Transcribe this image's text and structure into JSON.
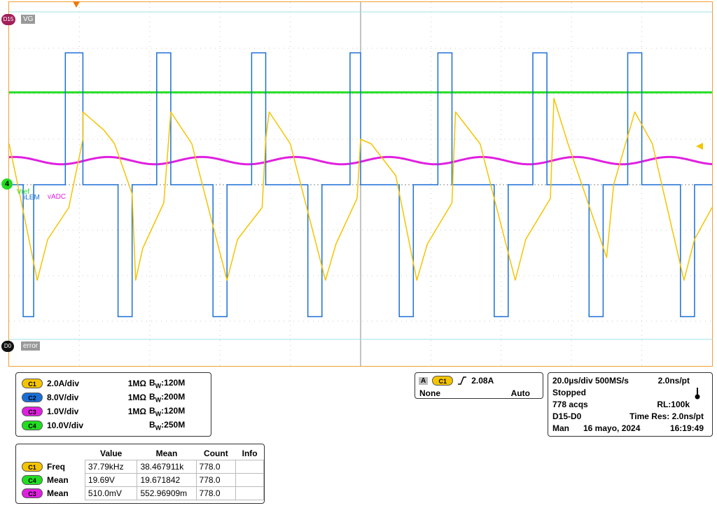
{
  "screen": {
    "labels": {
      "d15_marker": "D15",
      "d15_name": "VG",
      "d0_marker": "D0",
      "d0_name": "error",
      "ch4_marker": "4",
      "trace_label_vref": "Vref",
      "trace_label_ilem": "iLEM",
      "trace_label_vadc": "vADC"
    },
    "colors": {
      "ch1": "#f5c400",
      "ch2": "#1a6fd6",
      "ch3": "#e020e0",
      "ch4": "#22dd22",
      "grid": "#c8c8c8",
      "frame": "#f0a030",
      "digital": "#a0e0e8"
    },
    "trigger_marker_icon": "trigger-down-arrow",
    "trigger_level_icon": "trigger-level-left-arrow"
  },
  "chart_data": {
    "type": "line",
    "title": "",
    "xlabel": "",
    "ylabel": "",
    "x_units": "divisions",
    "y_units": "divisions",
    "xlim": [
      0,
      10
    ],
    "ylim": [
      -4,
      4
    ],
    "grid": true,
    "period_div": 1.33,
    "series": [
      {
        "name": "C1",
        "color": "#f5c400",
        "description_free": true,
        "points": [
          [
            0,
            0.9
          ],
          [
            0.15,
            -0.2
          ],
          [
            0.4,
            -2.1
          ],
          [
            0.55,
            -1.2
          ],
          [
            0.85,
            -0.5
          ],
          [
            1.05,
            1.0
          ],
          [
            1.05,
            1.6
          ],
          [
            1.35,
            1.2
          ],
          [
            1.5,
            0.9
          ],
          [
            1.75,
            -0.2
          ],
          [
            1.8,
            -2.1
          ],
          [
            1.9,
            -1.4
          ],
          [
            2.2,
            -0.4
          ],
          [
            2.3,
            1.6
          ],
          [
            2.6,
            0.9
          ],
          [
            3.1,
            -2.1
          ],
          [
            3.25,
            -1.2
          ],
          [
            3.6,
            -0.5
          ],
          [
            3.65,
            1.0
          ],
          [
            3.7,
            1.6
          ],
          [
            4.0,
            0.9
          ],
          [
            4.5,
            -2.1
          ],
          [
            4.65,
            -1.3
          ],
          [
            4.95,
            -0.3
          ],
          [
            5.0,
            1.0
          ],
          [
            5.15,
            0.9
          ],
          [
            5.5,
            0.2
          ],
          [
            5.8,
            -2.1
          ],
          [
            5.95,
            -1.3
          ],
          [
            6.3,
            -0.4
          ],
          [
            6.35,
            1.6
          ],
          [
            6.7,
            0.9
          ],
          [
            7.2,
            -2.1
          ],
          [
            7.35,
            -1.2
          ],
          [
            7.7,
            -0.3
          ],
          [
            7.75,
            1.9
          ],
          [
            7.95,
            0.9
          ],
          [
            8.5,
            -1.6
          ],
          [
            8.6,
            0.0
          ],
          [
            8.9,
            1.6
          ],
          [
            9.15,
            0.9
          ],
          [
            9.6,
            -2.1
          ],
          [
            9.75,
            -1.2
          ],
          [
            10.0,
            -0.5
          ]
        ]
      },
      {
        "name": "C2",
        "color": "#1a6fd6",
        "points": [
          [
            0,
            0
          ],
          [
            0.2,
            0
          ],
          [
            0.2,
            -2.9
          ],
          [
            0.35,
            -2.9
          ],
          [
            0.35,
            0
          ],
          [
            0.8,
            0
          ],
          [
            0.8,
            2.9
          ],
          [
            1.05,
            2.9
          ],
          [
            1.05,
            0
          ],
          [
            1.55,
            0
          ],
          [
            1.55,
            -2.9
          ],
          [
            1.75,
            -2.9
          ],
          [
            1.75,
            0
          ],
          [
            2.1,
            0
          ],
          [
            2.1,
            2.9
          ],
          [
            2.3,
            2.9
          ],
          [
            2.3,
            0
          ],
          [
            2.9,
            0
          ],
          [
            2.9,
            -2.9
          ],
          [
            3.1,
            -2.9
          ],
          [
            3.1,
            0
          ],
          [
            3.45,
            0
          ],
          [
            3.45,
            2.9
          ],
          [
            3.65,
            2.9
          ],
          [
            3.65,
            0
          ],
          [
            4.25,
            0
          ],
          [
            4.25,
            -2.9
          ],
          [
            4.45,
            -2.9
          ],
          [
            4.45,
            0
          ],
          [
            4.85,
            0
          ],
          [
            4.85,
            2.9
          ],
          [
            5.0,
            2.9
          ],
          [
            5.0,
            0
          ],
          [
            5.55,
            0
          ],
          [
            5.55,
            -2.9
          ],
          [
            5.75,
            -2.9
          ],
          [
            5.75,
            0
          ],
          [
            6.1,
            0
          ],
          [
            6.1,
            2.9
          ],
          [
            6.3,
            2.9
          ],
          [
            6.3,
            0
          ],
          [
            6.9,
            0
          ],
          [
            6.9,
            -2.9
          ],
          [
            7.1,
            -2.9
          ],
          [
            7.1,
            0
          ],
          [
            7.45,
            0
          ],
          [
            7.45,
            2.9
          ],
          [
            7.65,
            2.9
          ],
          [
            7.65,
            0
          ],
          [
            8.25,
            0
          ],
          [
            8.25,
            -2.9
          ],
          [
            8.45,
            -2.9
          ],
          [
            8.45,
            0
          ],
          [
            8.8,
            0
          ],
          [
            8.8,
            2.9
          ],
          [
            9.0,
            2.9
          ],
          [
            9.0,
            0
          ],
          [
            9.55,
            0
          ],
          [
            9.55,
            -2.9
          ],
          [
            9.75,
            -2.9
          ],
          [
            9.75,
            0
          ],
          [
            10,
            0
          ]
        ]
      },
      {
        "name": "C3",
        "color": "#e020e0",
        "mean_div": 0.53,
        "ripple_div": 0.08
      },
      {
        "name": "C4",
        "color": "#22dd22",
        "level_div": 2.03
      }
    ]
  },
  "channels_panel": {
    "rows": [
      {
        "badge": "C1",
        "scale": "2.0A/div",
        "impedance": "1MΩ",
        "bw_prefix": "B",
        "bw_sub": "W",
        "bw": ":120M",
        "color": "#f5c400"
      },
      {
        "badge": "C2",
        "scale": "8.0V/div",
        "impedance": "1MΩ",
        "bw_prefix": "B",
        "bw_sub": "W",
        "bw": ":200M",
        "color": "#1a6fd6"
      },
      {
        "badge": "C3",
        "scale": "1.0V/div",
        "impedance": "1MΩ",
        "bw_prefix": "B",
        "bw_sub": "W",
        "bw": ":120M",
        "color": "#e020e0"
      },
      {
        "badge": "C4",
        "scale": "10.0V/div",
        "impedance": "",
        "bw_prefix": "B",
        "bw_sub": "W",
        "bw": ":250M",
        "color": "#22dd22"
      }
    ]
  },
  "trigger_panel": {
    "mode_letter": "A",
    "source_badge": "C1",
    "slope_icon": "rising-edge-icon",
    "level": "2.08A",
    "coupling": "None",
    "mode": "Auto"
  },
  "timebase_panel": {
    "line1_a": "20.0µs/div  500MS/s",
    "line1_b": "2.0ns/pt",
    "state": "Stopped",
    "acqs": "778 acqs",
    "rl": "RL:100k",
    "digital": "D15-D0",
    "time_res": "Time Res: 2.0ns/pt",
    "day": "Man",
    "date": "16 mayo, 2024",
    "time": "16:19:49",
    "thermometer_icon": "thermometer-icon"
  },
  "measurements": {
    "headers": [
      "Value",
      "Mean",
      "Count",
      "Info"
    ],
    "rows": [
      {
        "badge": "C1",
        "color": "#f5c400",
        "name": "Freq",
        "value": "37.79kHz",
        "mean": "38.467911k",
        "count": "778.0",
        "info": ""
      },
      {
        "badge": "C4",
        "color": "#22dd22",
        "name": "Mean",
        "value": "19.69V",
        "mean": "19.671842",
        "count": "778.0",
        "info": ""
      },
      {
        "badge": "C3",
        "color": "#e020e0",
        "name": "Mean",
        "value": "510.0mV",
        "mean": "552.96909m",
        "count": "778.0",
        "info": ""
      }
    ]
  }
}
